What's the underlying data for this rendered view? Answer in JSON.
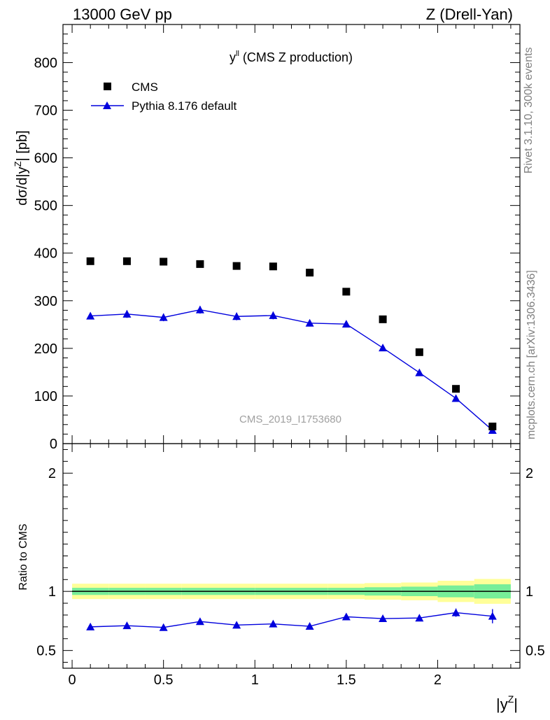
{
  "header": {
    "left": "13000 GeV pp",
    "right": "Z (Drell-Yan)"
  },
  "side_labels": {
    "rivet": "Rivet 3.1.10,  300k events",
    "source": "mcplots.cern.ch [arXiv:1306.3436]"
  },
  "watermark": "CMS_2019_I1753680",
  "plot_title": {
    "main": "y",
    "sup": "ll",
    "rest": " (CMS Z production)"
  },
  "colors": {
    "data": "#000000",
    "mc": "#0000dd",
    "band_outer": "#ffff99",
    "band_inner": "#77ee99"
  },
  "legend": [
    {
      "label": "CMS",
      "marker": "square"
    },
    {
      "label": "Pythia 8.176 default",
      "marker": "triangle"
    }
  ],
  "chart_data": [
    {
      "type": "scatter",
      "panel": "main",
      "ylabel": "dσ/d|y^Z| [pb]",
      "xlim": [
        -0.05,
        2.45
      ],
      "ylim": [
        0,
        880
      ],
      "yticks": [
        0,
        100,
        200,
        300,
        400,
        500,
        600,
        700,
        800
      ],
      "x": [
        0.1,
        0.3,
        0.5,
        0.7,
        0.9,
        1.1,
        1.3,
        1.5,
        1.7,
        1.9,
        2.1,
        2.3
      ],
      "series": [
        {
          "name": "CMS",
          "values": [
            383,
            383,
            382,
            377,
            373,
            372,
            359,
            319,
            261,
            192,
            115,
            36
          ]
        },
        {
          "name": "Pythia 8.176 default",
          "values": [
            268,
            272,
            265,
            281,
            267,
            269,
            253,
            251,
            201,
            149,
            95,
            28
          ],
          "errors": [
            7,
            8,
            8,
            8,
            8,
            8,
            7,
            7,
            7,
            5,
            4,
            3
          ]
        }
      ]
    },
    {
      "type": "line",
      "panel": "ratio",
      "ylabel": "Ratio to CMS",
      "xlabel": "|y^Z|",
      "xlim": [
        -0.05,
        2.45
      ],
      "ylim": [
        0.35,
        2.25
      ],
      "yticks": [
        0.5,
        1,
        2
      ],
      "xticks": [
        0,
        0.5,
        1,
        1.5,
        2
      ],
      "x": [
        0.1,
        0.3,
        0.5,
        0.7,
        0.9,
        1.1,
        1.3,
        1.5,
        1.7,
        1.9,
        2.1,
        2.3
      ],
      "series": [
        {
          "name": "Pythia 8.176 default",
          "values": [
            0.7,
            0.71,
            0.695,
            0.745,
            0.715,
            0.725,
            0.705,
            0.785,
            0.77,
            0.775,
            0.82,
            0.79
          ],
          "errors": [
            0.02,
            0.02,
            0.02,
            0.02,
            0.02,
            0.02,
            0.02,
            0.02,
            0.02,
            0.025,
            0.035,
            0.06
          ]
        }
      ],
      "band_edges": [
        0,
        0.2,
        0.4,
        0.6,
        0.8,
        1.0,
        1.2,
        1.4,
        1.6,
        1.8,
        2.0,
        2.2,
        2.4
      ],
      "band_outer": [
        0.065,
        0.065,
        0.065,
        0.065,
        0.065,
        0.065,
        0.065,
        0.065,
        0.07,
        0.075,
        0.09,
        0.105
      ],
      "band_inner": [
        0.03,
        0.03,
        0.03,
        0.03,
        0.03,
        0.03,
        0.03,
        0.03,
        0.035,
        0.04,
        0.05,
        0.06
      ]
    }
  ]
}
